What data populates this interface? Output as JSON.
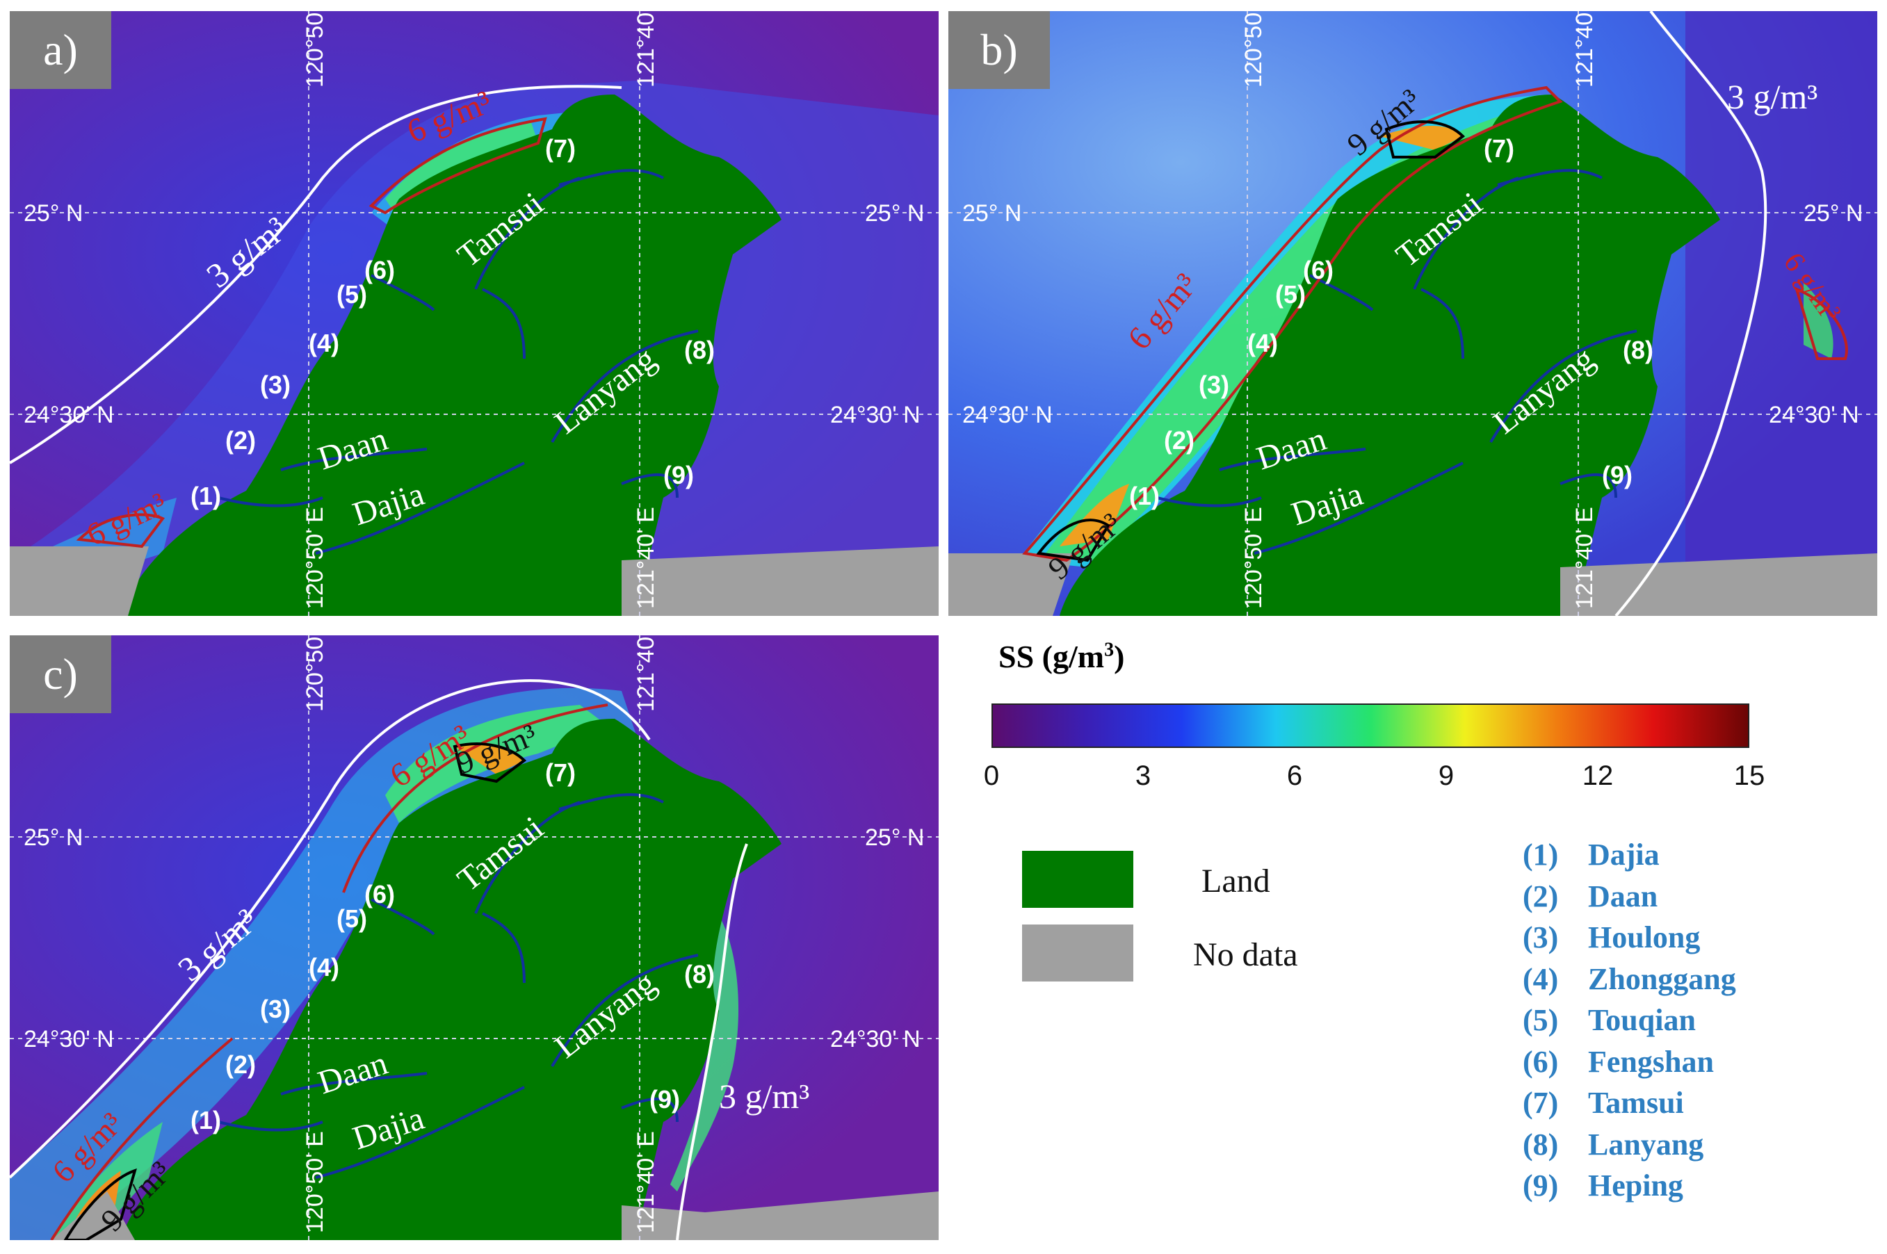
{
  "panels": [
    {
      "id": "a",
      "label": "a)",
      "contours": {
        "c3": "3 g/m³",
        "c6a": "6 g/m³",
        "c6b": "6 g/m³"
      }
    },
    {
      "id": "b",
      "label": "b)",
      "contours": {
        "c3": "3 g/m³",
        "c6a": "6 g/m³",
        "c6b": "6 g/m³",
        "c9a": "9 g/m³",
        "c9b": "9 g/m³"
      }
    },
    {
      "id": "c",
      "label": "c)",
      "contours": {
        "c3a": "3 g/m³",
        "c3b": "3 g/m³",
        "c6a": "6 g/m³",
        "c6b": "6 g/m³",
        "c9a": "9 g/m³",
        "c9b": "9 g/m³"
      }
    }
  ],
  "graticule": {
    "lon1": "120°50' E",
    "lon2": "121°40' E",
    "lat1": "25° N",
    "lat2": "24°30' N"
  },
  "river_names": {
    "tamsui": "Tamsui",
    "lanyang": "Lanyang",
    "daan": "Daan",
    "dajia": "Dajia"
  },
  "river_numbers": [
    "(1)",
    "(2)",
    "(3)",
    "(4)",
    "(5)",
    "(6)",
    "(7)",
    "(8)",
    "(9)"
  ],
  "colorbar": {
    "title": "SS (g/m",
    "title_sup": "3",
    "title_end": ")",
    "ticks": [
      "0",
      "3",
      "6",
      "9",
      "12",
      "15"
    ],
    "range": [
      0,
      15
    ],
    "colors": [
      "#5a0d6e",
      "#3a1fb5",
      "#1f3df0",
      "#1ec8f0",
      "#27e36a",
      "#f0f01c",
      "#f07a10",
      "#e01010",
      "#6b0505"
    ]
  },
  "legend": {
    "land_label": "Land",
    "land_color": "#007a00",
    "nodata_label": "No data",
    "nodata_color": "#a0a0a0"
  },
  "river_key": [
    {
      "num": "(1)",
      "name": "Dajia"
    },
    {
      "num": "(2)",
      "name": "Daan"
    },
    {
      "num": "(3)",
      "name": "Houlong"
    },
    {
      "num": "(4)",
      "name": "Zhonggang"
    },
    {
      "num": "(5)",
      "name": "Touqian"
    },
    {
      "num": "(6)",
      "name": "Fengshan"
    },
    {
      "num": "(7)",
      "name": "Tamsui"
    },
    {
      "num": "(8)",
      "name": "Lanyang"
    },
    {
      "num": "(9)",
      "name": "Heping"
    }
  ]
}
